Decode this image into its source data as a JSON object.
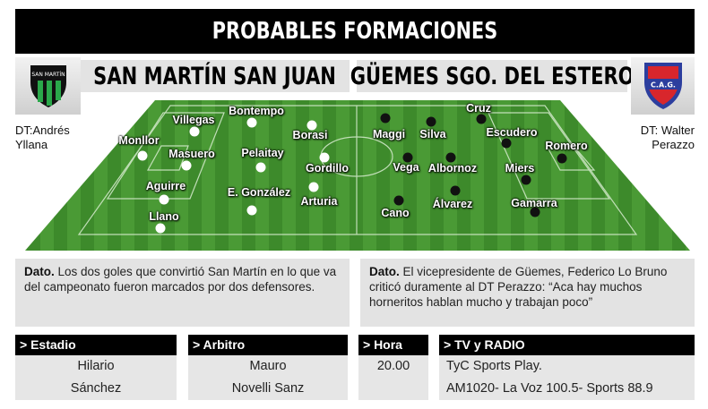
{
  "header": {
    "title": "PROBABLES FORMACIONES"
  },
  "home": {
    "name": "SAN MARTÍN SAN JUAN",
    "logo_text": "SAN MARTÍN",
    "dt": [
      "DT:Andrés",
      "Yllana"
    ],
    "dot_color": "#ffffff",
    "players": [
      "Villegas",
      "Bontempo",
      "Borasi",
      "Monllor",
      "Masuero",
      "Pelaitay",
      "Gordillo",
      "Aguirre",
      "E. González",
      "Arturia",
      "Llano"
    ]
  },
  "away": {
    "name": "GÜEMES SGO. DEL ESTERO",
    "logo_text": "C.A.G.",
    "dt": [
      "DT: Walter",
      "Perazzo"
    ],
    "dot_color": "#111111",
    "players": [
      "Maggi",
      "Silva",
      "Cruz",
      "Escudero",
      "Romero",
      "Vega",
      "Albornoz",
      "Miers",
      "Cano",
      "Álvarez",
      "Gamarra"
    ]
  },
  "dato_left": {
    "label": "Dato.",
    "text": " Los dos goles que convirtió San Martín en lo que va del campeonato fueron marcados por dos defensores."
  },
  "dato_right": {
    "label": "Dato.",
    "text": " El vicepresidente de Güemes, Federico Lo Bruno criticó duramente al DT Perazzo: “Aca hay muchos horneritos hablan mucho y trabajan poco”"
  },
  "info": [
    {
      "label": "> Estadio",
      "lines": [
        "Hilario",
        "Sánchez"
      ]
    },
    {
      "label": "> Arbitro",
      "lines": [
        "Mauro",
        "Novelli Sanz"
      ]
    },
    {
      "label": "> Hora",
      "lines": [
        "20.00"
      ]
    },
    {
      "label": "> TV y RADIO",
      "lines": [
        "TyC Sports Play.",
        "AM1020- La Voz 100.5- Sports 88.9"
      ]
    }
  ],
  "colors": {
    "pitch": "#3f8a2c",
    "header_bg": "#000000",
    "box_bg": "#e3e3e3"
  }
}
